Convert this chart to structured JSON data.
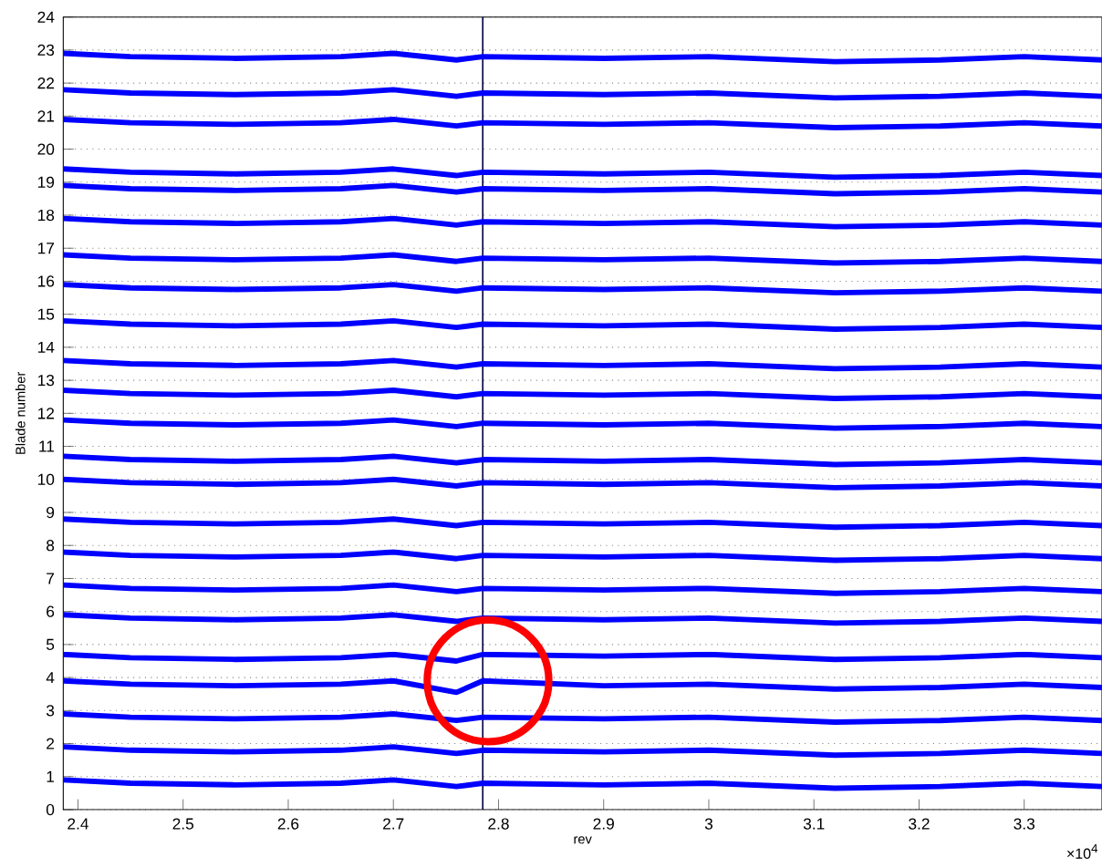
{
  "chart_data": {
    "type": "line",
    "xlabel": "rev",
    "ylabel": "Blade number",
    "annotations": [
      "×10$^{4}$"
    ],
    "x": [
      2.386,
      2.45,
      2.55,
      2.65,
      2.7,
      2.76,
      2.785,
      2.9,
      3.0,
      3.12,
      3.22,
      3.3,
      3.374
    ],
    "series": [
      {
        "color": "#0000ff",
        "values": [
          0.9,
          0.8,
          0.75,
          0.8,
          0.9,
          0.7,
          0.8,
          0.75,
          0.8,
          0.65,
          0.7,
          0.8,
          0.7
        ]
      },
      {
        "color": "#0000ff",
        "values": [
          1.9,
          1.8,
          1.75,
          1.8,
          1.9,
          1.7,
          1.8,
          1.75,
          1.8,
          1.65,
          1.7,
          1.8,
          1.7
        ]
      },
      {
        "color": "#0000ff",
        "values": [
          2.9,
          2.8,
          2.75,
          2.8,
          2.9,
          2.7,
          2.8,
          2.75,
          2.8,
          2.65,
          2.7,
          2.8,
          2.7
        ]
      },
      {
        "color": "#0000ff",
        "values": [
          3.9,
          3.8,
          3.75,
          3.8,
          3.9,
          3.55,
          3.9,
          3.75,
          3.8,
          3.65,
          3.7,
          3.8,
          3.7
        ]
      },
      {
        "color": "#0000ff",
        "values": [
          4.7,
          4.6,
          4.55,
          4.6,
          4.7,
          4.5,
          4.7,
          4.65,
          4.7,
          4.55,
          4.6,
          4.7,
          4.6
        ]
      },
      {
        "color": "#0000ff",
        "values": [
          5.9,
          5.8,
          5.75,
          5.8,
          5.9,
          5.7,
          5.8,
          5.75,
          5.8,
          5.65,
          5.7,
          5.8,
          5.7
        ]
      },
      {
        "color": "#0000ff",
        "values": [
          6.8,
          6.7,
          6.65,
          6.7,
          6.8,
          6.6,
          6.7,
          6.65,
          6.7,
          6.55,
          6.6,
          6.7,
          6.6
        ]
      },
      {
        "color": "#0000ff",
        "values": [
          7.8,
          7.7,
          7.65,
          7.7,
          7.8,
          7.6,
          7.7,
          7.65,
          7.7,
          7.55,
          7.6,
          7.7,
          7.6
        ]
      },
      {
        "color": "#0000ff",
        "values": [
          8.8,
          8.7,
          8.65,
          8.7,
          8.8,
          8.6,
          8.7,
          8.65,
          8.7,
          8.55,
          8.6,
          8.7,
          8.6
        ]
      },
      {
        "color": "#0000ff",
        "values": [
          10,
          9.9,
          9.85,
          9.9,
          10,
          9.8,
          9.9,
          9.85,
          9.9,
          9.75,
          9.8,
          9.9,
          9.8
        ]
      },
      {
        "color": "#0000ff",
        "values": [
          10.7,
          10.6,
          10.55,
          10.6,
          10.7,
          10.5,
          10.6,
          10.55,
          10.6,
          10.45,
          10.5,
          10.6,
          10.5
        ]
      },
      {
        "color": "#0000ff",
        "values": [
          11.8,
          11.7,
          11.65,
          11.7,
          11.8,
          11.6,
          11.7,
          11.65,
          11.7,
          11.55,
          11.6,
          11.7,
          11.6
        ]
      },
      {
        "color": "#0000ff",
        "values": [
          12.7,
          12.6,
          12.55,
          12.6,
          12.7,
          12.5,
          12.6,
          12.55,
          12.6,
          12.45,
          12.5,
          12.6,
          12.5
        ]
      },
      {
        "color": "#0000ff",
        "values": [
          13.6,
          13.5,
          13.45,
          13.5,
          13.6,
          13.4,
          13.5,
          13.45,
          13.5,
          13.35,
          13.4,
          13.5,
          13.4
        ]
      },
      {
        "color": "#0000ff",
        "values": [
          14.8,
          14.7,
          14.65,
          14.7,
          14.8,
          14.6,
          14.7,
          14.65,
          14.7,
          14.55,
          14.6,
          14.7,
          14.6
        ]
      },
      {
        "color": "#0000ff",
        "values": [
          15.9,
          15.8,
          15.75,
          15.8,
          15.9,
          15.7,
          15.8,
          15.75,
          15.8,
          15.65,
          15.7,
          15.8,
          15.7
        ]
      },
      {
        "color": "#0000ff",
        "values": [
          16.8,
          16.7,
          16.65,
          16.7,
          16.8,
          16.6,
          16.7,
          16.65,
          16.7,
          16.55,
          16.6,
          16.7,
          16.6
        ]
      },
      {
        "color": "#0000ff",
        "values": [
          17.9,
          17.8,
          17.75,
          17.8,
          17.9,
          17.7,
          17.8,
          17.75,
          17.8,
          17.65,
          17.7,
          17.8,
          17.7
        ]
      },
      {
        "color": "#0000ff",
        "values": [
          18.9,
          18.8,
          18.75,
          18.8,
          18.9,
          18.7,
          18.8,
          18.75,
          18.8,
          18.65,
          18.7,
          18.8,
          18.7
        ]
      },
      {
        "color": "#0000ff",
        "values": [
          19.4,
          19.3,
          19.25,
          19.3,
          19.4,
          19.2,
          19.3,
          19.25,
          19.3,
          19.15,
          19.2,
          19.3,
          19.2
        ]
      },
      {
        "color": "#0000ff",
        "values": [
          20.9,
          20.8,
          20.75,
          20.8,
          20.9,
          20.7,
          20.8,
          20.75,
          20.8,
          20.65,
          20.7,
          20.8,
          20.7
        ]
      },
      {
        "color": "#0000ff",
        "values": [
          21.8,
          21.7,
          21.65,
          21.7,
          21.8,
          21.6,
          21.7,
          21.65,
          21.7,
          21.55,
          21.6,
          21.7,
          21.6
        ]
      },
      {
        "color": "#0000ff",
        "values": [
          22.9,
          22.8,
          22.75,
          22.8,
          22.9,
          22.7,
          22.8,
          22.75,
          22.8,
          22.65,
          22.7,
          22.8,
          22.7
        ]
      }
    ],
    "xlim": [
      2.386,
      3.374
    ],
    "ylim": [
      0,
      24
    ],
    "xticks": [
      2.4,
      2.5,
      2.6,
      2.7,
      2.8,
      2.9,
      3,
      3.1,
      3.2,
      3.3
    ],
    "yticks": [
      0,
      1,
      2,
      3,
      4,
      5,
      6,
      7,
      8,
      9,
      10,
      11,
      12,
      13,
      14,
      15,
      16,
      17,
      18,
      19,
      20,
      21,
      22,
      23,
      24
    ],
    "ref_lines": [
      {
        "axis": "x",
        "value": 2.785,
        "color": "#000040"
      }
    ],
    "grid": "y",
    "marker": "none",
    "line_style": "solid"
  }
}
